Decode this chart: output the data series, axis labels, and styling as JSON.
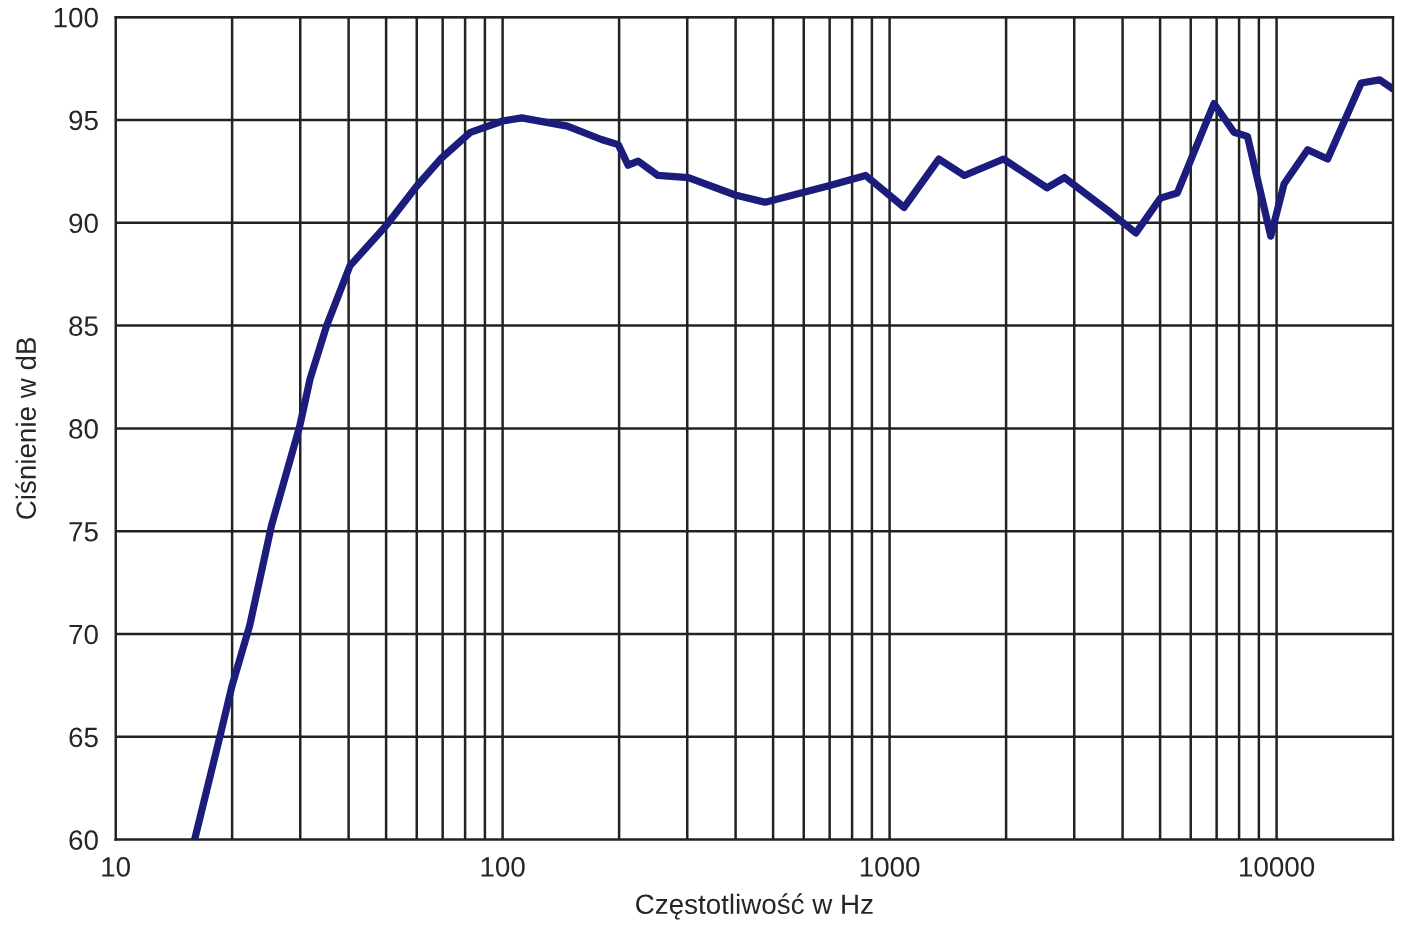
{
  "chart_data": {
    "type": "line",
    "xlabel": "Częstotliwość w Hz",
    "ylabel": "Ciśnienie w dB",
    "log": "x",
    "grid": true,
    "marker": "none",
    "line_style": "solid",
    "xlim": [
      10,
      20000
    ],
    "ylim": [
      60,
      100
    ],
    "xticks": [
      10,
      {
        "value": 20,
        "label": null
      },
      {
        "value": 30,
        "label": null
      },
      {
        "value": 40,
        "label": null
      },
      {
        "value": 50,
        "label": null
      },
      {
        "value": 60,
        "label": null
      },
      {
        "value": 70,
        "label": null
      },
      {
        "value": 80,
        "label": null
      },
      {
        "value": 90,
        "label": null
      },
      100,
      {
        "value": 200,
        "label": null
      },
      {
        "value": 300,
        "label": null
      },
      {
        "value": 400,
        "label": null
      },
      {
        "value": 500,
        "label": null
      },
      {
        "value": 600,
        "label": null
      },
      {
        "value": 700,
        "label": null
      },
      {
        "value": 800,
        "label": null
      },
      {
        "value": 900,
        "label": null
      },
      1000,
      {
        "value": 2000,
        "label": null
      },
      {
        "value": 3000,
        "label": null
      },
      {
        "value": 4000,
        "label": null
      },
      {
        "value": 5000,
        "label": null
      },
      {
        "value": 6000,
        "label": null
      },
      {
        "value": 7000,
        "label": null
      },
      {
        "value": 8000,
        "label": null
      },
      {
        "value": 9000,
        "label": null
      },
      10000,
      {
        "value": 20000,
        "label": null
      }
    ],
    "yticks": [
      60,
      65,
      70,
      75,
      80,
      85,
      90,
      95,
      100
    ],
    "series": [
      {
        "color": "#1c1c7c",
        "x": [
          16,
          18.7,
          20,
          22.2,
          25.3,
          29.9,
          31.8,
          35.1,
          40.3,
          50.2,
          60.1,
          69.1,
          82.6,
          100,
          112,
          147,
          180,
          199,
          211,
          224,
          252,
          302,
          399,
          477,
          697,
          867,
          1090,
          1340,
          1560,
          1970,
          2550,
          2830,
          3720,
          4330,
          5010,
          5540,
          6890,
          7760,
          8410,
          9660,
          10460,
          12030,
          13550,
          16540,
          18450,
          20000
        ],
        "values": [
          60,
          65.2,
          67.5,
          70.4,
          75.3,
          80.1,
          82.4,
          85,
          87.9,
          89.9,
          91.8,
          93.1,
          94.4,
          94.95,
          95.1,
          94.7,
          94.05,
          93.8,
          92.8,
          93,
          92.3,
          92.2,
          91.35,
          91,
          91.8,
          92.3,
          90.75,
          93.1,
          92.3,
          93.1,
          91.7,
          92.2,
          90.5,
          89.5,
          91.2,
          91.45,
          95.8,
          94.4,
          94.2,
          89.35,
          91.9,
          93.55,
          93.1,
          96.8,
          96.95,
          96.5
        ]
      }
    ]
  }
}
